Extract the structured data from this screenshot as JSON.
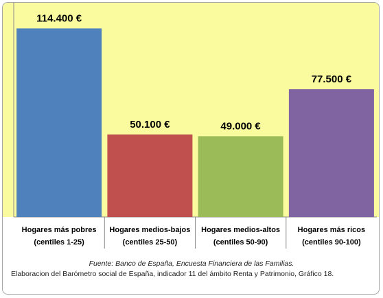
{
  "chart_data": {
    "type": "bar",
    "categories": [
      [
        "Hogares más pobres",
        "(centiles 1-25)"
      ],
      [
        "Hogares medios-bajos",
        "(centiles 25-50)"
      ],
      [
        "Hogares medios-altos",
        "(centiles 50-90)"
      ],
      [
        "Hogares más ricos",
        "(centiles 90-100)"
      ]
    ],
    "values": [
      114400,
      50100,
      49000,
      77500
    ],
    "data_labels": [
      "114.400 €",
      "50.100 €",
      "49.000 €",
      "77.500 €"
    ],
    "colors": [
      "#4f81bd",
      "#c0504d",
      "#9bbb59",
      "#8064a2"
    ],
    "plot_background": "#fafa9e",
    "ylim": [
      0,
      130000
    ],
    "grid": false,
    "legend": false
  },
  "source": {
    "line1": "Fuente: Banco de España, Encuesta Financiera de las Familias.",
    "line2": "Elaboracion del Barómetro social de España, indicador  11 del ámbito Renta y Patrimonio, Gráfico 18."
  }
}
